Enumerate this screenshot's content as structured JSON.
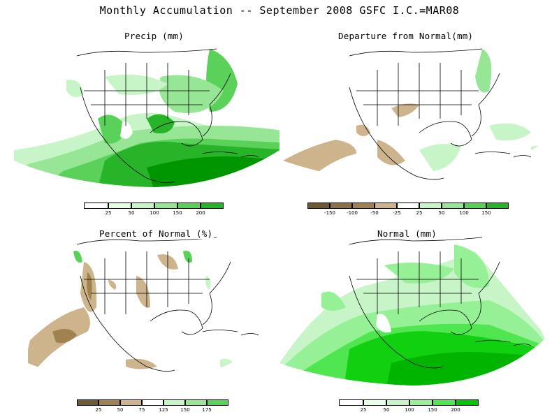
{
  "title": "Monthly Accumulation -- September 2008 GSFC I.C.=MAR08",
  "panels": [
    {
      "key": "precip",
      "title": "Precip (mm)",
      "colorbar": {
        "labels": [
          "25",
          "50",
          "100",
          "150",
          "200"
        ]
      }
    },
    {
      "key": "departure",
      "title": "Departure from Normal(mm)",
      "colorbar": {
        "labels": [
          "-150",
          "-100",
          "-50",
          "-25",
          "25",
          "50",
          "100",
          "150"
        ]
      }
    },
    {
      "key": "percent",
      "title": "Percent of Normal (%)",
      "colorbar": {
        "labels": [
          "25",
          "50",
          "75",
          "125",
          "150",
          "175"
        ]
      }
    },
    {
      "key": "normal",
      "title": "Normal (mm)",
      "colorbar": {
        "labels": [
          "25",
          "50",
          "100",
          "150",
          "200"
        ]
      }
    }
  ],
  "colors": {
    "green_scale": [
      "#f0fff0",
      "#c8f5c8",
      "#96e696",
      "#5ad25a",
      "#28b428",
      "#009600"
    ],
    "normal_scale": [
      "#f0fff0",
      "#c8f5c8",
      "#96f096",
      "#50e650",
      "#10d010",
      "#00b400"
    ],
    "brown_scale": [
      "#6e5a32",
      "#a08250",
      "#cdb48c"
    ],
    "departure_bar": [
      "#6e5a32",
      "#8c7246",
      "#a08250",
      "#cdb48c",
      "#ffffff",
      "#c8f5c8",
      "#96e696",
      "#5ad25a",
      "#28b428"
    ]
  }
}
